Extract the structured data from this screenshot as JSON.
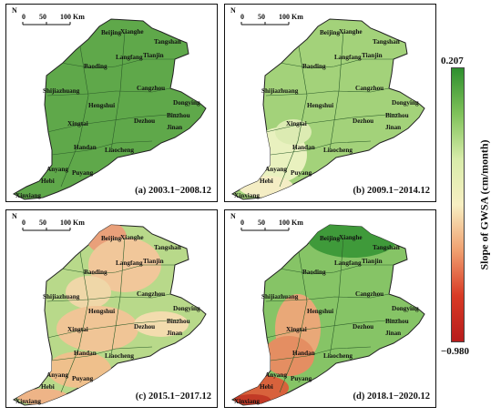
{
  "north_label": "N",
  "scale_labels": [
    "0",
    "50",
    "100 Km"
  ],
  "legend": {
    "title": "Slope of GWSA (cm/month)",
    "max": "0.207",
    "min": "−0.980",
    "colors": [
      "#2e8f2e",
      "#7fc25a",
      "#d8ecaa",
      "#f7efc2",
      "#f0a070",
      "#d83a25",
      "#b71c1c"
    ]
  },
  "cities": [
    "Beijing",
    "Xianghe",
    "Tangshan",
    "Tianjin",
    "Langfang",
    "Baoding",
    "Cangzhou",
    "Shijiazhuang",
    "Hengshui",
    "Xingtai",
    "Dezhou",
    "Binzhou",
    "Dongying",
    "Jinan",
    "Handan",
    "Liaocheng",
    "Anyang",
    "Puyang",
    "Hebi",
    "Xinxiang"
  ],
  "panels": [
    {
      "caption": "(a) 2003.1−2008.12",
      "base_color": "#5fa84a"
    },
    {
      "caption": "(b) 2009.1−2014.12",
      "base_color": "#a3d27a"
    },
    {
      "caption": "(c) 2015.1−2017.12",
      "base_color": "#b8d98a"
    },
    {
      "caption": "(d) 2018.1−2020.12",
      "base_color": "#86c466"
    }
  ]
}
